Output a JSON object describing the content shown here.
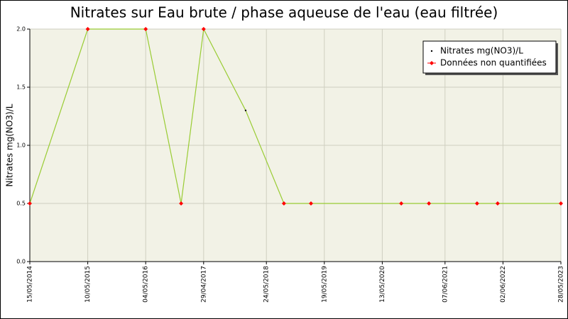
{
  "chart_data": {
    "type": "line",
    "title": "Nitrates sur Eau brute / phase aqueuse de l'eau (eau filtrée)",
    "y_label": "Nitrates mg(NO3)/L",
    "x": [
      "2014-05-15",
      "2015-05-10",
      "2016-05-04",
      "2016-12-10",
      "2017-04-29",
      "2018-01-15",
      "2018-09-10",
      "2019-02-25",
      "2020-09-08",
      "2021-02-27",
      "2021-12-23",
      "2022-04-30",
      "2023-05-28"
    ],
    "series": [
      {
        "name": "Nitrates mg(NO3)/L",
        "color": "#99cc33",
        "marker_color": "#000000",
        "values": [
          0.5,
          2.0,
          2.0,
          0.5,
          2.0,
          1.3,
          0.5,
          0.5,
          0.5,
          0.5,
          0.5,
          0.5,
          0.5
        ]
      },
      {
        "name": "Données non quantifiées",
        "color": "#ff0000",
        "values": [
          0.5,
          2.0,
          2.0,
          0.5,
          2.0,
          null,
          0.5,
          0.5,
          0.5,
          0.5,
          0.5,
          0.5,
          0.5
        ]
      }
    ],
    "xlim": [
      "2014-05-15",
      "2023-05-28"
    ],
    "xticks": [
      {
        "value": "2014-05-15",
        "label": "15/05/2014"
      },
      {
        "value": "2015-05-10",
        "label": "10/05/2015"
      },
      {
        "value": "2016-05-04",
        "label": "04/05/2016"
      },
      {
        "value": "2017-04-29",
        "label": "29/04/2017"
      },
      {
        "value": "2018-05-24",
        "label": "24/05/2018"
      },
      {
        "value": "2019-05-19",
        "label": "19/05/2019"
      },
      {
        "value": "2020-05-13",
        "label": "13/05/2020"
      },
      {
        "value": "2021-06-07",
        "label": "07/06/2021"
      },
      {
        "value": "2022-06-02",
        "label": "02/06/2022"
      },
      {
        "value": "2023-05-28",
        "label": "28/05/2023"
      }
    ],
    "ylim": [
      0,
      2
    ],
    "yticks": [
      {
        "value": 0,
        "label": "0.0"
      },
      0.5,
      {
        "value": 1,
        "label": "1.0"
      },
      1.5,
      {
        "value": 2,
        "label": "2.0"
      }
    ],
    "grid": true,
    "legend_position": "top-right"
  }
}
